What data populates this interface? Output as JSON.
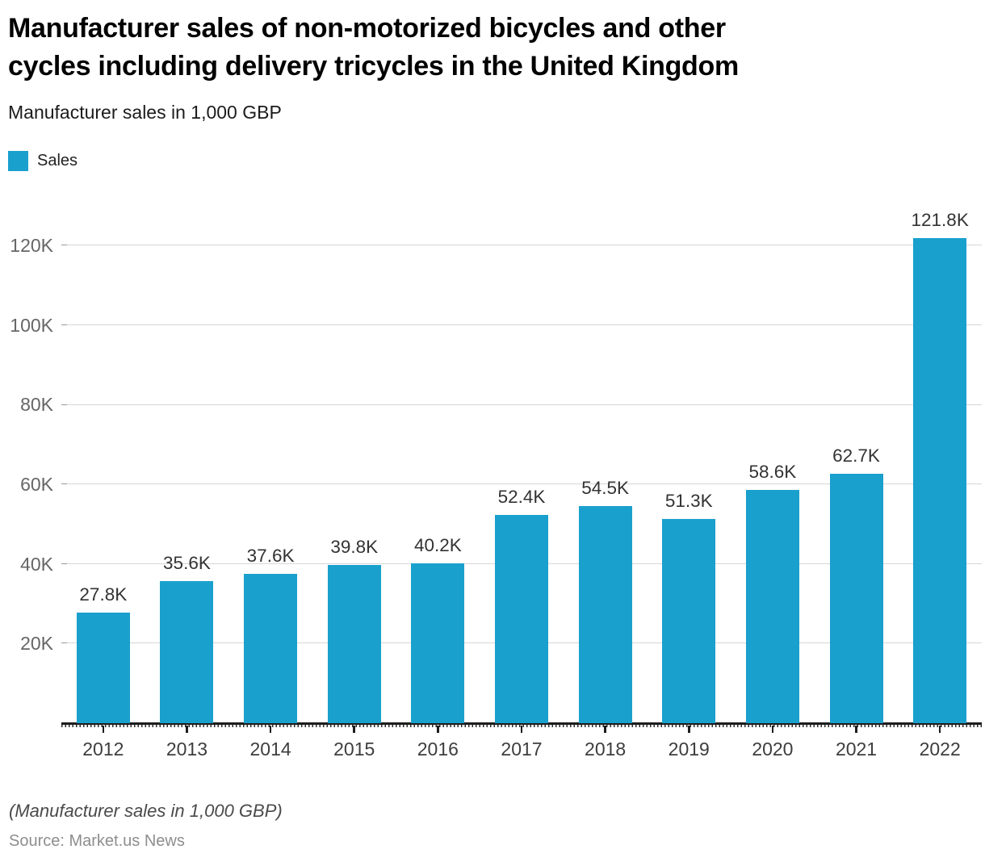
{
  "header": {
    "title_lines": [
      "Manufacturer sales of non-motorized bicycles and other",
      "cycles including delivery tricycles in the United Kingdom"
    ],
    "subtitle": "Manufacturer sales in 1,000 GBP"
  },
  "legend": {
    "label": "Sales"
  },
  "chart_data": {
    "type": "bar",
    "title": "Manufacturer sales of non-motorized bicycles and other cycles including delivery tricycles in the United Kingdom",
    "subtitle": "Manufacturer sales in 1,000 GBP",
    "series_name": "Sales",
    "categories": [
      "2012",
      "2013",
      "2014",
      "2015",
      "2016",
      "2017",
      "2018",
      "2019",
      "2020",
      "2021",
      "2022"
    ],
    "values": [
      27.8,
      35.6,
      37.6,
      39.8,
      40.2,
      52.4,
      54.5,
      51.3,
      58.6,
      62.7,
      121.8
    ],
    "value_labels": [
      "27.8K",
      "35.6K",
      "37.6K",
      "39.8K",
      "40.2K",
      "52.4K",
      "54.5K",
      "51.3K",
      "58.6K",
      "62.7K",
      "121.8K"
    ],
    "unit": "1,000 GBP",
    "xlabel": "",
    "ylabel": "",
    "yticks": [
      20,
      40,
      60,
      80,
      100,
      120
    ],
    "ytick_labels": [
      "20K",
      "40K",
      "60K",
      "80K",
      "100K",
      "120K"
    ],
    "ylim": [
      0,
      131
    ],
    "grid": "horizontal",
    "legend_position": "top-left",
    "bar_color": "#19a0cd"
  },
  "footer": {
    "note": "(Manufacturer sales in 1,000 GBP)",
    "source": "Source: Market.us News"
  }
}
